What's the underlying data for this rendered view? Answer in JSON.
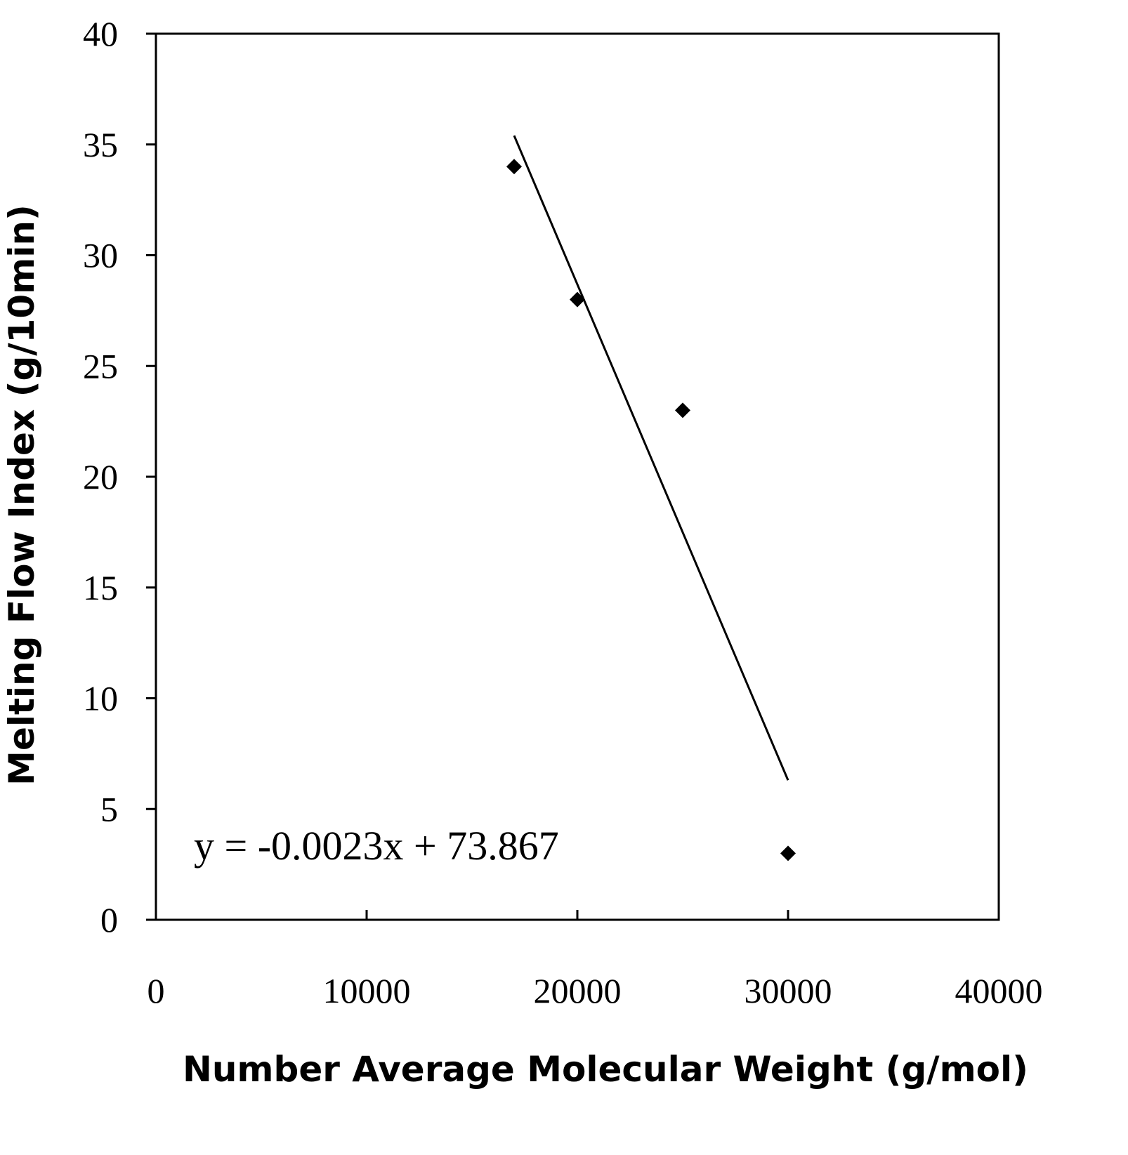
{
  "chart_data": {
    "type": "scatter",
    "x_label": "Number Average Molecular Weight (g/mol)",
    "y_label": "Melting Flow Index (g/10min)",
    "annotation": "y = -0.0023x + 73.867",
    "series": [
      {
        "color": "#000000",
        "x": [
          17000,
          20000,
          25000,
          30000
        ],
        "values": [
          34,
          28,
          23,
          3
        ]
      }
    ],
    "trendline": {
      "color": "#000000",
      "x": [
        17000,
        30000
      ],
      "values": [
        35.4,
        6.3
      ]
    },
    "xlim": [
      0,
      40000
    ],
    "xticks": [
      0,
      10000,
      20000,
      30000,
      40000
    ],
    "ylim": [
      0,
      40
    ],
    "yticks": [
      0,
      5,
      10,
      15,
      20,
      25,
      30,
      35,
      40
    ],
    "grid": false
  }
}
